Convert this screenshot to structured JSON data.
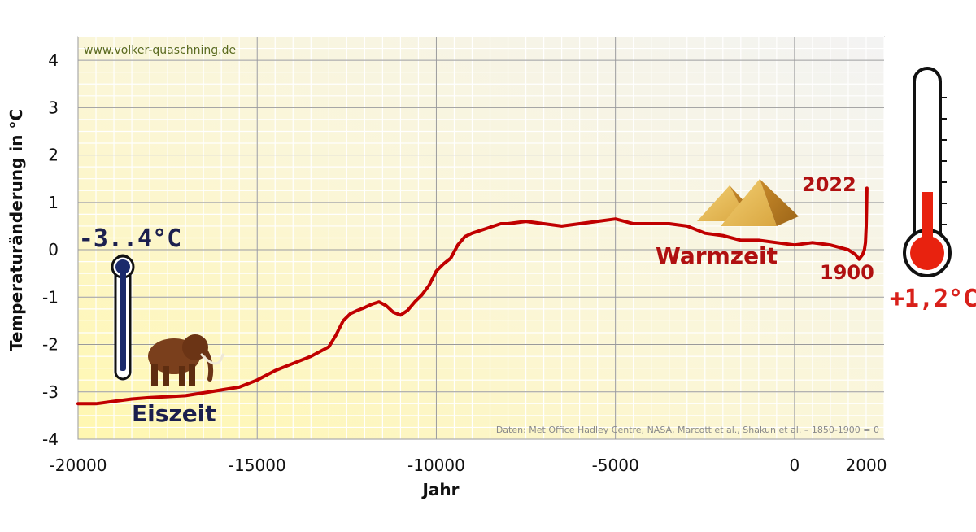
{
  "chart_data": {
    "type": "line",
    "watermark": "www.volker-quaschning.de",
    "xlabel": "Jahr",
    "ylabel": "Temperaturänderung in °C",
    "xlim": [
      -20000,
      2500
    ],
    "ylim": [
      -4,
      4.5
    ],
    "x_ticks": [
      {
        "value": -20000,
        "label": "-20000"
      },
      {
        "value": -15000,
        "label": "-15000"
      },
      {
        "value": -10000,
        "label": "-10000"
      },
      {
        "value": -5000,
        "label": "-5000"
      },
      {
        "value": 0,
        "label": "0"
      },
      {
        "value": 2000,
        "label": "2000"
      }
    ],
    "y_ticks": [
      {
        "value": 4,
        "label": "4"
      },
      {
        "value": 3,
        "label": "3"
      },
      {
        "value": 2,
        "label": "2"
      },
      {
        "value": 1,
        "label": "1"
      },
      {
        "value": 0,
        "label": "0"
      },
      {
        "value": -1,
        "label": "-1"
      },
      {
        "value": -2,
        "label": "-2"
      },
      {
        "value": -3,
        "label": "-3"
      },
      {
        "value": -4,
        "label": "-4"
      }
    ],
    "grid": true,
    "source": "Daten: Met Office Hadley Centre, NASA, Marcott et al., Shakun et al. – 1850-1900 = 0",
    "color": "#c00000",
    "series": [
      {
        "x": [
          -20000,
          -19500,
          -19000,
          -18500,
          -18000,
          -17500,
          -17000,
          -16500,
          -16000,
          -15500,
          -15000,
          -14500,
          -14000,
          -13500,
          -13000,
          -12800,
          -12600,
          -12400,
          -12200,
          -12000,
          -11800,
          -11600,
          -11400,
          -11200,
          -11000,
          -10800,
          -10600,
          -10400,
          -10200,
          -10000,
          -9800,
          -9600,
          -9400,
          -9200,
          -9000,
          -8800,
          -8600,
          -8400,
          -8200,
          -8000,
          -7500,
          -7000,
          -6500,
          -6000,
          -5500,
          -5000,
          -4500,
          -4000,
          -3500,
          -3000,
          -2500,
          -2000,
          -1500,
          -1000,
          -500,
          0,
          500,
          1000,
          1500,
          1700,
          1800,
          1850,
          1900,
          1950,
          1980,
          2000,
          2010,
          2022
        ],
        "y": [
          -3.25,
          -3.25,
          -3.2,
          -3.15,
          -3.12,
          -3.1,
          -3.08,
          -3.02,
          -2.96,
          -2.9,
          -2.75,
          -2.55,
          -2.4,
          -2.25,
          -2.05,
          -1.8,
          -1.5,
          -1.35,
          -1.28,
          -1.22,
          -1.15,
          -1.1,
          -1.18,
          -1.32,
          -1.38,
          -1.28,
          -1.1,
          -0.95,
          -0.75,
          -0.45,
          -0.3,
          -0.18,
          0.1,
          0.28,
          0.35,
          0.4,
          0.45,
          0.5,
          0.55,
          0.55,
          0.6,
          0.55,
          0.5,
          0.55,
          0.6,
          0.65,
          0.55,
          0.55,
          0.55,
          0.5,
          0.35,
          0.3,
          0.2,
          0.2,
          0.15,
          0.1,
          0.15,
          0.1,
          0.0,
          -0.1,
          -0.2,
          -0.15,
          -0.1,
          0.0,
          0.15,
          0.5,
          0.8,
          1.3
        ]
      }
    ]
  },
  "annotations": {
    "cold_value": "-3..4°C",
    "ice_age": "Eiszeit",
    "warm_period": "Warmzeit",
    "year_2022": "2022",
    "year_1900": "1900",
    "warm_value": "+1,2°C"
  },
  "icons": {
    "mammoth": "mammoth-icon",
    "pyramids": "pyramids-icon",
    "cold_thermometer": "thermometer-cold-icon",
    "warm_thermometer": "thermometer-hot-icon"
  }
}
